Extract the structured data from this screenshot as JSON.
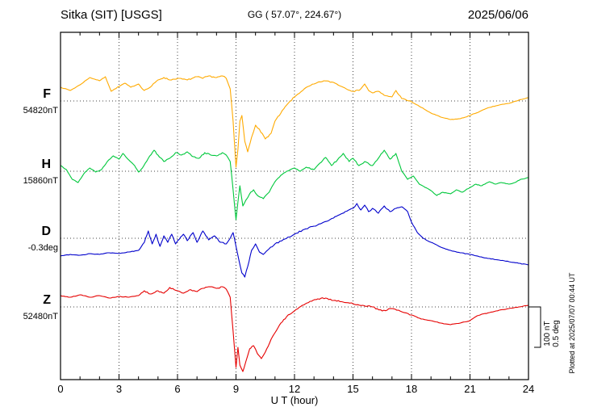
{
  "header": {
    "station": "Sitka (SIT)  [USGS]",
    "coords": "GG ( 57.07°, 224.67°)",
    "date": "2025/06/06"
  },
  "axis": {
    "xlabel": "U T (hour)",
    "ticks": [
      0,
      3,
      6,
      9,
      12,
      15,
      18,
      21,
      24
    ]
  },
  "scalebar": {
    "label_nt": "100 nT",
    "label_deg": "0.5 deg"
  },
  "plotted_at": "Plotted at 2025/07/07 00:44 UT",
  "chart_data": {
    "type": "line",
    "title": "Sitka (SIT) [USGS] magnetogram 2025/06/06",
    "xlabel": "U T (hour)",
    "xlim": [
      0,
      24
    ],
    "x_ticks": [
      0,
      3,
      6,
      9,
      12,
      15,
      18,
      21,
      24
    ],
    "grid": "dotted vertical lines every 3 hours; dotted horizontal baseline for each trace",
    "scale": {
      "nT_per_division": 100,
      "deg_per_division": 0.5
    },
    "series": [
      {
        "name": "F",
        "units": "nT",
        "base_label": "54820nT",
        "base_value": 54820,
        "color": "#ffaa00",
        "points": [
          [
            0,
            54854
          ],
          [
            0.5,
            54846
          ],
          [
            1,
            54860
          ],
          [
            1.5,
            54878
          ],
          [
            2,
            54870
          ],
          [
            2.3,
            54880
          ],
          [
            2.6,
            54844
          ],
          [
            3,
            54856
          ],
          [
            3.3,
            54864
          ],
          [
            3.6,
            54854
          ],
          [
            4,
            54862
          ],
          [
            4.3,
            54846
          ],
          [
            4.6,
            54854
          ],
          [
            5,
            54872
          ],
          [
            5.3,
            54878
          ],
          [
            5.6,
            54872
          ],
          [
            6,
            54876
          ],
          [
            6.5,
            54872
          ],
          [
            7,
            54880
          ],
          [
            7.3,
            54876
          ],
          [
            7.6,
            54882
          ],
          [
            8,
            54878
          ],
          [
            8.3,
            54882
          ],
          [
            8.5,
            54876
          ],
          [
            8.7,
            54850
          ],
          [
            8.85,
            54770
          ],
          [
            9,
            54656
          ],
          [
            9.1,
            54700
          ],
          [
            9.2,
            54770
          ],
          [
            9.3,
            54784
          ],
          [
            9.45,
            54720
          ],
          [
            9.6,
            54694
          ],
          [
            9.8,
            54730
          ],
          [
            10,
            54760
          ],
          [
            10.2,
            54750
          ],
          [
            10.5,
            54726
          ],
          [
            10.8,
            54740
          ],
          [
            11,
            54770
          ],
          [
            11.3,
            54790
          ],
          [
            11.6,
            54810
          ],
          [
            12,
            54830
          ],
          [
            12.5,
            54850
          ],
          [
            13,
            54862
          ],
          [
            13.5,
            54870
          ],
          [
            14,
            54866
          ],
          [
            14.5,
            54854
          ],
          [
            15,
            54844
          ],
          [
            15.3,
            54846
          ],
          [
            15.6,
            54862
          ],
          [
            15.8,
            54846
          ],
          [
            16,
            54840
          ],
          [
            16.3,
            54844
          ],
          [
            16.6,
            54834
          ],
          [
            17,
            54830
          ],
          [
            17.2,
            54846
          ],
          [
            17.5,
            54826
          ],
          [
            18,
            54818
          ],
          [
            18.5,
            54804
          ],
          [
            19,
            54790
          ],
          [
            19.5,
            54780
          ],
          [
            20,
            54774
          ],
          [
            20.5,
            54776
          ],
          [
            21,
            54784
          ],
          [
            21.5,
            54794
          ],
          [
            22,
            54804
          ],
          [
            22.5,
            54810
          ],
          [
            23,
            54814
          ],
          [
            23.5,
            54822
          ],
          [
            24,
            54828
          ]
        ]
      },
      {
        "name": "H",
        "units": "nT",
        "base_label": "15860nT",
        "base_value": 15860,
        "color": "#00c83c",
        "points": [
          [
            0,
            15874
          ],
          [
            0.3,
            15864
          ],
          [
            0.6,
            15840
          ],
          [
            0.9,
            15832
          ],
          [
            1.2,
            15854
          ],
          [
            1.5,
            15868
          ],
          [
            1.8,
            15858
          ],
          [
            2.1,
            15864
          ],
          [
            2.4,
            15884
          ],
          [
            2.7,
            15898
          ],
          [
            3,
            15890
          ],
          [
            3.2,
            15904
          ],
          [
            3.5,
            15888
          ],
          [
            3.8,
            15874
          ],
          [
            4,
            15858
          ],
          [
            4.2,
            15868
          ],
          [
            4.5,
            15892
          ],
          [
            4.8,
            15912
          ],
          [
            5,
            15900
          ],
          [
            5.3,
            15884
          ],
          [
            5.6,
            15892
          ],
          [
            5.9,
            15906
          ],
          [
            6.2,
            15900
          ],
          [
            6.5,
            15908
          ],
          [
            6.8,
            15896
          ],
          [
            7.1,
            15892
          ],
          [
            7.4,
            15906
          ],
          [
            7.7,
            15900
          ],
          [
            8,
            15898
          ],
          [
            8.3,
            15906
          ],
          [
            8.5,
            15900
          ],
          [
            8.7,
            15884
          ],
          [
            8.85,
            15814
          ],
          [
            9,
            15740
          ],
          [
            9.1,
            15784
          ],
          [
            9.2,
            15824
          ],
          [
            9.35,
            15774
          ],
          [
            9.5,
            15788
          ],
          [
            9.7,
            15804
          ],
          [
            9.9,
            15814
          ],
          [
            10.1,
            15800
          ],
          [
            10.4,
            15792
          ],
          [
            10.7,
            15808
          ],
          [
            11,
            15834
          ],
          [
            11.3,
            15850
          ],
          [
            11.6,
            15860
          ],
          [
            12,
            15868
          ],
          [
            12.3,
            15860
          ],
          [
            12.6,
            15870
          ],
          [
            13,
            15864
          ],
          [
            13.3,
            15880
          ],
          [
            13.6,
            15894
          ],
          [
            13.9,
            15874
          ],
          [
            14.2,
            15888
          ],
          [
            14.5,
            15904
          ],
          [
            14.8,
            15884
          ],
          [
            15,
            15892
          ],
          [
            15.3,
            15874
          ],
          [
            15.6,
            15884
          ],
          [
            16,
            15874
          ],
          [
            16.3,
            15892
          ],
          [
            16.6,
            15912
          ],
          [
            16.9,
            15890
          ],
          [
            17.2,
            15904
          ],
          [
            17.5,
            15860
          ],
          [
            17.8,
            15840
          ],
          [
            18.1,
            15848
          ],
          [
            18.4,
            15828
          ],
          [
            18.7,
            15820
          ],
          [
            19,
            15812
          ],
          [
            19.3,
            15800
          ],
          [
            19.6,
            15808
          ],
          [
            20,
            15804
          ],
          [
            20.3,
            15814
          ],
          [
            20.6,
            15808
          ],
          [
            21,
            15820
          ],
          [
            21.3,
            15828
          ],
          [
            21.6,
            15824
          ],
          [
            22,
            15834
          ],
          [
            22.3,
            15828
          ],
          [
            22.6,
            15832
          ],
          [
            23,
            15828
          ],
          [
            23.3,
            15832
          ],
          [
            23.6,
            15840
          ],
          [
            24,
            15844
          ]
        ]
      },
      {
        "name": "D",
        "units": "deg",
        "base_label": "-0.3deg",
        "base_value": -0.3,
        "color": "#0000cc",
        "points": [
          [
            0,
            -0.52
          ],
          [
            0.5,
            -0.5
          ],
          [
            1,
            -0.51
          ],
          [
            1.5,
            -0.49
          ],
          [
            2,
            -0.5
          ],
          [
            2.5,
            -0.48
          ],
          [
            3,
            -0.49
          ],
          [
            3.5,
            -0.47
          ],
          [
            4,
            -0.45
          ],
          [
            4.3,
            -0.35
          ],
          [
            4.5,
            -0.21
          ],
          [
            4.7,
            -0.37
          ],
          [
            4.9,
            -0.25
          ],
          [
            5.1,
            -0.4
          ],
          [
            5.3,
            -0.27
          ],
          [
            5.5,
            -0.35
          ],
          [
            5.7,
            -0.25
          ],
          [
            5.9,
            -0.37
          ],
          [
            6.1,
            -0.31
          ],
          [
            6.3,
            -0.25
          ],
          [
            6.5,
            -0.33
          ],
          [
            6.8,
            -0.23
          ],
          [
            7,
            -0.35
          ],
          [
            7.3,
            -0.21
          ],
          [
            7.6,
            -0.32
          ],
          [
            7.9,
            -0.27
          ],
          [
            8.2,
            -0.35
          ],
          [
            8.5,
            -0.37
          ],
          [
            8.7,
            -0.3
          ],
          [
            8.85,
            -0.23
          ],
          [
            9,
            -0.4
          ],
          [
            9.15,
            -0.57
          ],
          [
            9.3,
            -0.73
          ],
          [
            9.45,
            -0.78
          ],
          [
            9.6,
            -0.65
          ],
          [
            9.8,
            -0.45
          ],
          [
            10,
            -0.37
          ],
          [
            10.2,
            -0.47
          ],
          [
            10.4,
            -0.5
          ],
          [
            10.7,
            -0.43
          ],
          [
            11,
            -0.37
          ],
          [
            11.5,
            -0.31
          ],
          [
            12,
            -0.25
          ],
          [
            12.5,
            -0.19
          ],
          [
            13,
            -0.15
          ],
          [
            13.5,
            -0.1
          ],
          [
            14,
            -0.05
          ],
          [
            14.3,
            -0.01
          ],
          [
            14.6,
            0.03
          ],
          [
            15,
            0.07
          ],
          [
            15.2,
            0.13
          ],
          [
            15.4,
            0.05
          ],
          [
            15.6,
            0.11
          ],
          [
            15.8,
            0.03
          ],
          [
            16,
            0.07
          ],
          [
            16.3,
            0.01
          ],
          [
            16.6,
            0.1
          ],
          [
            16.9,
            0.03
          ],
          [
            17.2,
            0.07
          ],
          [
            17.5,
            0.09
          ],
          [
            17.8,
            0.03
          ],
          [
            18,
            -0.1
          ],
          [
            18.3,
            -0.23
          ],
          [
            18.6,
            -0.3
          ],
          [
            19,
            -0.35
          ],
          [
            19.5,
            -0.41
          ],
          [
            20,
            -0.45
          ],
          [
            20.5,
            -0.48
          ],
          [
            21,
            -0.5
          ],
          [
            21.5,
            -0.53
          ],
          [
            22,
            -0.55
          ],
          [
            22.5,
            -0.57
          ],
          [
            23,
            -0.59
          ],
          [
            23.5,
            -0.61
          ],
          [
            24,
            -0.63
          ]
        ]
      },
      {
        "name": "Z",
        "units": "nT",
        "base_label": "52480nT",
        "base_value": 52480,
        "color": "#e60000",
        "points": [
          [
            0,
            52508
          ],
          [
            0.5,
            52504
          ],
          [
            1,
            52510
          ],
          [
            1.5,
            52504
          ],
          [
            2,
            52508
          ],
          [
            2.5,
            52502
          ],
          [
            3,
            52506
          ],
          [
            3.5,
            52504
          ],
          [
            4,
            52508
          ],
          [
            4.3,
            52520
          ],
          [
            4.6,
            52512
          ],
          [
            5,
            52520
          ],
          [
            5.3,
            52514
          ],
          [
            5.6,
            52528
          ],
          [
            6,
            52520
          ],
          [
            6.3,
            52514
          ],
          [
            6.6,
            52522
          ],
          [
            7,
            52518
          ],
          [
            7.3,
            52526
          ],
          [
            7.6,
            52530
          ],
          [
            8,
            52526
          ],
          [
            8.3,
            52530
          ],
          [
            8.5,
            52524
          ],
          [
            8.7,
            52504
          ],
          [
            8.85,
            52420
          ],
          [
            9,
            52330
          ],
          [
            9.1,
            52380
          ],
          [
            9.2,
            52336
          ],
          [
            9.35,
            52320
          ],
          [
            9.5,
            52344
          ],
          [
            9.7,
            52376
          ],
          [
            9.9,
            52384
          ],
          [
            10.1,
            52364
          ],
          [
            10.3,
            52352
          ],
          [
            10.5,
            52368
          ],
          [
            10.8,
            52400
          ],
          [
            11,
            52416
          ],
          [
            11.3,
            52440
          ],
          [
            11.6,
            52456
          ],
          [
            12,
            52470
          ],
          [
            12.4,
            52484
          ],
          [
            12.8,
            52494
          ],
          [
            13.2,
            52500
          ],
          [
            13.6,
            52502
          ],
          [
            14,
            52496
          ],
          [
            14.5,
            52492
          ],
          [
            15,
            52488
          ],
          [
            15.5,
            52484
          ],
          [
            16,
            52480
          ],
          [
            16.5,
            52470
          ],
          [
            17,
            52476
          ],
          [
            17.5,
            52468
          ],
          [
            18,
            52460
          ],
          [
            18.5,
            52450
          ],
          [
            19,
            52446
          ],
          [
            19.5,
            52440
          ],
          [
            20,
            52436
          ],
          [
            20.5,
            52440
          ],
          [
            21,
            52446
          ],
          [
            21.3,
            52456
          ],
          [
            21.6,
            52462
          ],
          [
            22,
            52466
          ],
          [
            22.5,
            52472
          ],
          [
            23,
            52476
          ],
          [
            23.5,
            52480
          ],
          [
            24,
            52484
          ]
        ]
      }
    ]
  }
}
